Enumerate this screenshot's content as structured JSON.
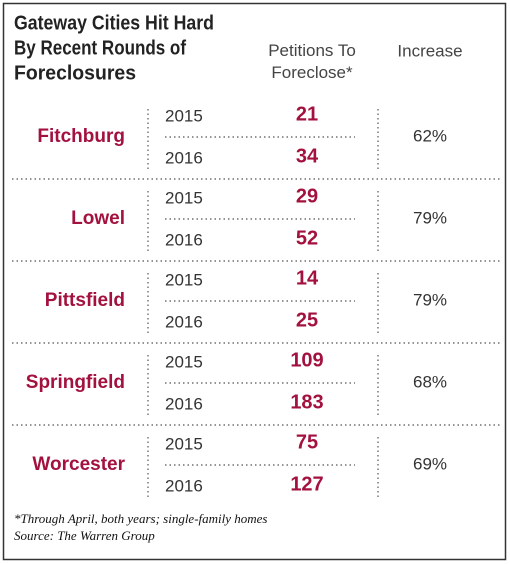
{
  "title_lines": [
    "Gateway Cities Hit Hard",
    "By Recent Rounds of",
    "Foreclosures"
  ],
  "table": {
    "columns": [
      "Petitions To Foreclose*",
      "Increase"
    ],
    "rows": [
      {
        "city": "Fitchburg",
        "years": [
          {
            "year": "2015",
            "petitions": 21
          },
          {
            "year": "2016",
            "petitions": 34
          }
        ],
        "increase": "62%"
      },
      {
        "city": "Lowel",
        "years": [
          {
            "year": "2015",
            "petitions": 29
          },
          {
            "year": "2016",
            "petitions": 52
          }
        ],
        "increase": "79%"
      },
      {
        "city": "Pittsfield",
        "years": [
          {
            "year": "2015",
            "petitions": 14
          },
          {
            "year": "2016",
            "petitions": 25
          }
        ],
        "increase": "79%"
      },
      {
        "city": "Springfield",
        "years": [
          {
            "year": "2015",
            "petitions": 109
          },
          {
            "year": "2016",
            "petitions": 183
          }
        ],
        "increase": "68%"
      },
      {
        "city": "Worcester",
        "years": [
          {
            "year": "2015",
            "petitions": 75
          },
          {
            "year": "2016",
            "petitions": 127
          }
        ],
        "increase": "69%"
      }
    ]
  },
  "footnote": "*Through April, both years; single-family homes",
  "source": "Source: The Warren Group"
}
